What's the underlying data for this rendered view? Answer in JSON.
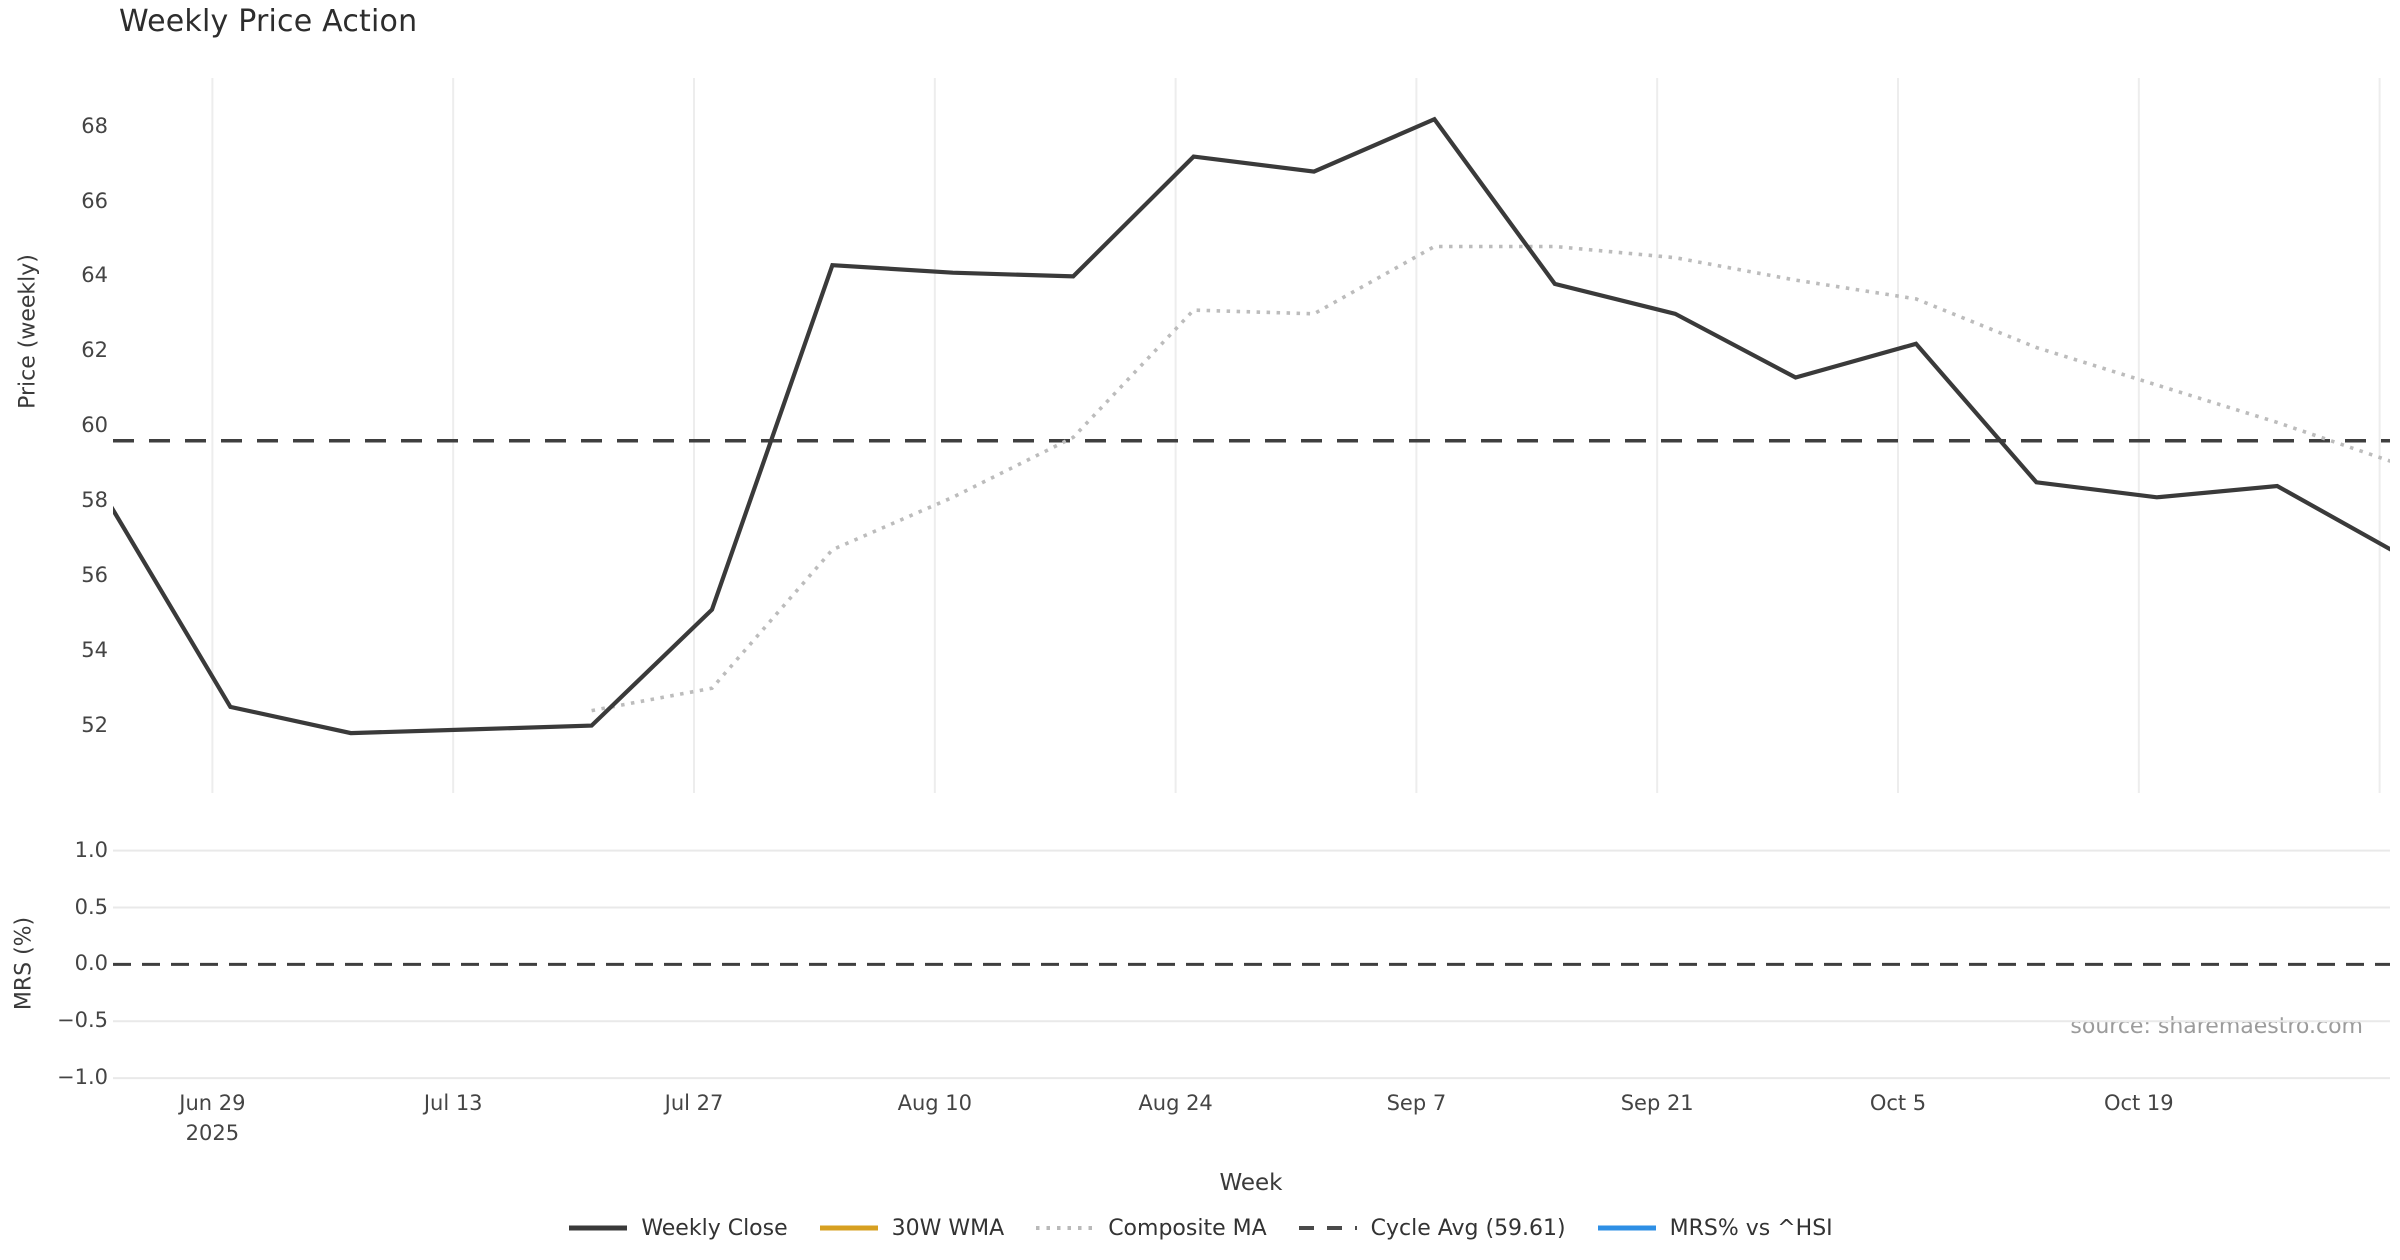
{
  "page": {
    "title": "Weekly Price Action",
    "source_note": "source: sharemaestro.com"
  },
  "axes": {
    "x_title": "Week",
    "top_y_title": "Price (weekly)",
    "bottom_y_title": "MRS (%)",
    "top_y_ticks": [
      "68",
      "66",
      "64",
      "62",
      "60",
      "58",
      "56",
      "54",
      "52"
    ],
    "bottom_y_ticks": [
      "1.0",
      "0.5",
      "0.0",
      "−0.5",
      "−1.0"
    ],
    "x_ticks": [
      {
        "line1": "Jun 29",
        "line2": "2025"
      },
      {
        "line1": "Jul 13",
        "line2": ""
      },
      {
        "line1": "Jul 27",
        "line2": ""
      },
      {
        "line1": "Aug 10",
        "line2": ""
      },
      {
        "line1": "Aug 24",
        "line2": ""
      },
      {
        "line1": "Sep 7",
        "line2": ""
      },
      {
        "line1": "Sep 21",
        "line2": ""
      },
      {
        "line1": "Oct 5",
        "line2": ""
      },
      {
        "line1": "Oct 19",
        "line2": ""
      }
    ]
  },
  "legend": [
    {
      "label": "Weekly Close",
      "style": "solid",
      "color": "#3a3a3a"
    },
    {
      "label": "30W WMA",
      "style": "solid",
      "color": "#d7a021"
    },
    {
      "label": "Composite MA",
      "style": "dotted",
      "color": "#b9b9b9"
    },
    {
      "label": "Cycle Avg (59.61)",
      "style": "dashed",
      "color": "#4a4a4a"
    },
    {
      "label": "MRS% vs ^HSI",
      "style": "solid",
      "color": "#2e8fe5"
    }
  ],
  "colors": {
    "weekly_close": "#3a3a3a",
    "composite_ma": "#bcbcbc",
    "cycle_avg_dash": "#3f3f3f",
    "wma_yellow": "#d7a021",
    "mrs_blue": "#2e8fe5",
    "grid_vertical": "#ededed",
    "grid_horizontal": "#e9e9e9",
    "tick_text": "#444444"
  },
  "chart_data": [
    {
      "type": "line",
      "panel": "price",
      "title": "Weekly Price Action",
      "xlabel": "Week",
      "ylabel": "Price (weekly)",
      "ylim": [
        50.2,
        69.3
      ],
      "yticks": [
        68,
        66,
        64,
        62,
        60,
        58,
        56,
        54,
        52
      ],
      "x_week_dates": [
        "Jun 23",
        "Jun 30",
        "Jul 7",
        "Jul 14",
        "Jul 21",
        "Jul 28",
        "Aug 4",
        "Aug 11",
        "Aug 18",
        "Aug 25",
        "Sep 1",
        "Sep 8",
        "Sep 15",
        "Sep 22",
        "Sep 29",
        "Oct 6",
        "Oct 13",
        "Oct 20",
        "Oct 27",
        "Nov 3"
      ],
      "series": [
        {
          "name": "Weekly Close",
          "values": [
            57.9,
            52.5,
            51.8,
            51.9,
            52.0,
            55.1,
            64.3,
            64.1,
            64.0,
            67.2,
            66.8,
            68.2,
            63.8,
            63.0,
            61.3,
            62.2,
            58.5,
            58.1,
            58.4,
            56.6
          ]
        },
        {
          "name": "30W WMA",
          "values": [
            null,
            null,
            null,
            null,
            null,
            null,
            null,
            null,
            null,
            null,
            null,
            null,
            null,
            null,
            null,
            null,
            null,
            null,
            null,
            null
          ]
        },
        {
          "name": "Composite MA",
          "values": [
            null,
            null,
            null,
            null,
            52.4,
            53.0,
            56.7,
            58.1,
            59.7,
            63.1,
            63.0,
            64.8,
            64.8,
            64.5,
            63.9,
            63.4,
            62.1,
            61.1,
            60.1,
            59.0
          ]
        }
      ],
      "hline": {
        "name": "Cycle Avg",
        "value": 59.61
      },
      "grid": "vertical-only",
      "legend_position": "bottom-center"
    },
    {
      "type": "line",
      "panel": "mrs",
      "ylabel": "MRS (%)",
      "ylim": [
        -1.06,
        1.05
      ],
      "yticks": [
        1.0,
        0.5,
        0.0,
        -0.5,
        -1.0
      ],
      "series": [
        {
          "name": "MRS% vs ^HSI",
          "values": []
        }
      ],
      "hline": {
        "name": "zero",
        "value": 0.0
      },
      "grid": "horizontal-only"
    }
  ]
}
